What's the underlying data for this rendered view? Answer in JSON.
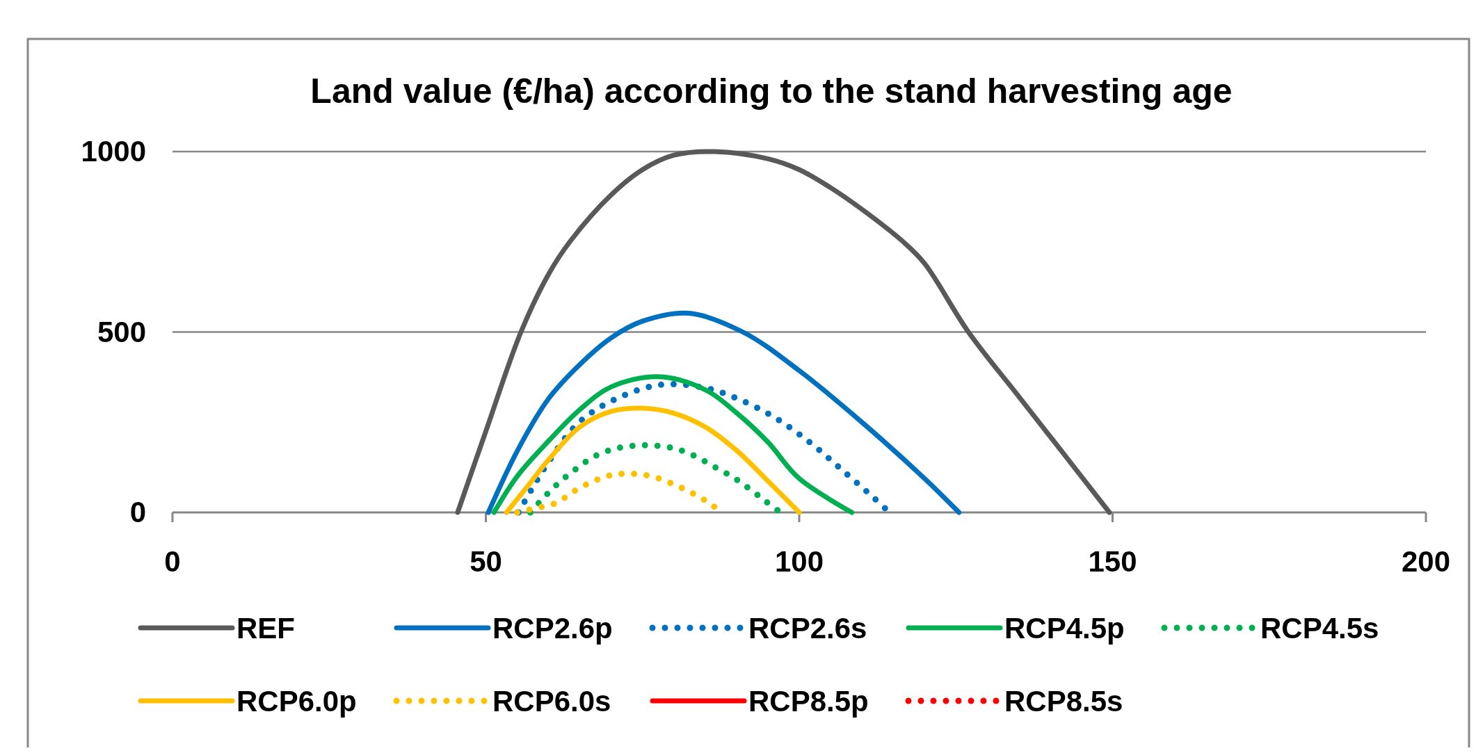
{
  "chart_data": {
    "type": "line",
    "title": "Land value (€/ha) according to the stand harvesting age",
    "xlim": [
      0,
      200
    ],
    "xticks": [
      0,
      50,
      100,
      150,
      200
    ],
    "ylim": [
      0,
      1000
    ],
    "yticks": [
      0,
      500,
      1000
    ],
    "grid": "y",
    "legend": "bottom",
    "marker": "none",
    "series": [
      {
        "name": "REF",
        "color": "#595959",
        "line_style": "solid",
        "x": [
          45.5,
          50,
          55.6,
          60,
          63.4,
          70,
          75,
          80,
          86.5,
          95,
          100,
          105,
          110,
          116.6,
          120,
          127,
          135,
          142,
          149.5
        ],
        "values": [
          0,
          225,
          500,
          660,
          750,
          880,
          950,
          990,
          1000,
          980,
          950,
          900,
          840,
          750,
          690,
          500,
          322,
          167,
          0
        ]
      },
      {
        "name": "RCP2.6p",
        "color": "#0070c0",
        "line_style": "solid",
        "x": [
          50.4,
          55,
          60,
          65,
          70,
          75,
          82.4,
          91,
          100,
          110,
          120,
          125.5
        ],
        "values": [
          0,
          170,
          315,
          410,
          484,
          530,
          552,
          500,
          393,
          250,
          94,
          0
        ]
      },
      {
        "name": "RCP2.6s",
        "color": "#0070c0",
        "line_style": "dotted",
        "x": [
          55.2,
          60,
          64.9,
          70.8,
          78,
          85,
          90.2,
          96.1,
          101.7,
          106.7,
          111.8,
          114.4
        ],
        "values": [
          0,
          140,
          250,
          315,
          354,
          345,
          315,
          263,
          194,
          120,
          42,
          0
        ]
      },
      {
        "name": "RCP4.5p",
        "color": "#00b050",
        "line_style": "solid",
        "x": [
          51.3,
          55,
          60,
          65,
          70,
          77.5,
          85,
          90,
          95,
          100,
          108.4
        ],
        "values": [
          0,
          100,
          198,
          285,
          348,
          376,
          340,
          276,
          195,
          94,
          0
        ]
      },
      {
        "name": "RCP4.5s",
        "color": "#00b050",
        "line_style": "dotted",
        "x": [
          57.1,
          59.5,
          61.9,
          64.5,
          67.3,
          70.5,
          73.7,
          77.2,
          80.4,
          83.5,
          86.5,
          89.4,
          92.1,
          94.8,
          97
        ],
        "values": [
          0,
          46,
          86,
          122,
          155,
          176,
          185,
          185,
          176,
          155,
          126,
          98,
          65,
          29,
          0
        ]
      },
      {
        "name": "RCP6.0p",
        "color": "#ffc000",
        "line_style": "solid",
        "x": [
          53.3,
          57,
          60,
          65,
          70,
          74.9,
          80,
          85,
          90,
          95,
          100
        ],
        "values": [
          0,
          80,
          146,
          237,
          280,
          289,
          275,
          237,
          172,
          87,
          0
        ]
      },
      {
        "name": "RCP6.0s",
        "color": "#ffc000",
        "line_style": "dotted",
        "x": [
          55,
          58,
          61.2,
          64.1,
          67.1,
          70.2,
          73.6,
          76.9,
          80.1,
          83.2,
          86,
          87.5
        ],
        "values": [
          0,
          12,
          26,
          59,
          86,
          104,
          107,
          98,
          77,
          51,
          22,
          0
        ]
      },
      {
        "name": "RCP8.5p",
        "color": "#ff0000",
        "line_style": "solid"
      },
      {
        "name": "RCP8.5s",
        "color": "#ff0000",
        "line_style": "dotted"
      }
    ]
  }
}
